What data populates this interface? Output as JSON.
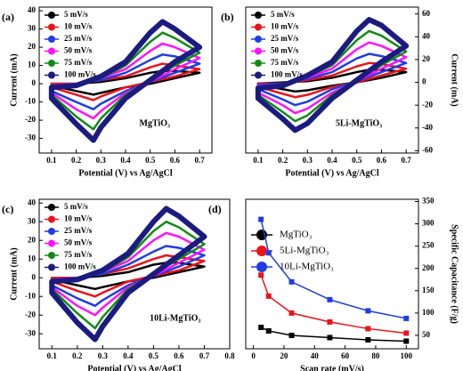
{
  "chart_data": [
    {
      "type": "line",
      "label": "(a)",
      "annotation": "MgTiO₃",
      "xlabel": "Potential (V) vs Ag/AgCl",
      "ylabel": "Current (mA)",
      "y_axis_side": "left",
      "x": [
        0.1,
        0.2,
        0.3,
        0.4,
        0.5,
        0.55,
        0.6,
        0.7,
        0.6,
        0.5,
        0.4,
        0.3,
        0.27,
        0.2,
        0.1
      ],
      "xlim": [
        0.05,
        0.75
      ],
      "xticks": [
        0.1,
        0.2,
        0.3,
        0.4,
        0.5,
        0.6,
        0.7
      ],
      "ylim": [
        -38,
        42
      ],
      "yticks": [
        -30,
        -20,
        -10,
        0,
        10,
        20,
        30,
        40
      ],
      "series": [
        {
          "name": "5 mV/s",
          "color": "#000000",
          "values": [
            0,
            0,
            1,
            3,
            6,
            7,
            7,
            6,
            3,
            0,
            -2,
            -5,
            -6,
            -4,
            -1
          ]
        },
        {
          "name": "10 mV/s",
          "color": "#e8141b",
          "values": [
            0,
            0,
            2,
            4,
            9,
            11,
            10,
            8,
            4,
            1,
            -2,
            -7,
            -9,
            -6,
            -2
          ]
        },
        {
          "name": "25 mV/s",
          "color": "#1f3de0",
          "values": [
            -1,
            0,
            2,
            6,
            13,
            16,
            15,
            11,
            6,
            1,
            -4,
            -11,
            -14,
            -10,
            -4
          ]
        },
        {
          "name": "50 mV/s",
          "color": "#ff10ff",
          "values": [
            -1,
            0,
            3,
            8,
            18,
            22,
            20,
            14,
            8,
            1,
            -5,
            -15,
            -19,
            -14,
            -5
          ]
        },
        {
          "name": "75 mV/s",
          "color": "#128a12",
          "values": [
            -1,
            -1,
            3,
            10,
            23,
            28,
            25,
            17,
            10,
            2,
            -6,
            -19,
            -25,
            -18,
            -6
          ]
        },
        {
          "name": "100 mV/s",
          "color": "#1b1b80",
          "values": [
            -2,
            -1,
            4,
            12,
            28,
            34,
            30,
            20,
            12,
            2,
            -8,
            -24,
            -31,
            -22,
            -8
          ]
        }
      ]
    },
    {
      "type": "line",
      "label": "(b)",
      "annotation": "5Li-MgTiO₃",
      "xlabel": "Potential (V) vs Ag/AgCl",
      "ylabel": "Current (mA)",
      "y_axis_side": "right",
      "x": [
        0.1,
        0.2,
        0.3,
        0.4,
        0.5,
        0.55,
        0.6,
        0.7,
        0.6,
        0.5,
        0.4,
        0.3,
        0.25,
        0.2,
        0.1
      ],
      "xlim": [
        0.05,
        0.75
      ],
      "xticks": [
        0.1,
        0.2,
        0.3,
        0.4,
        0.5,
        0.6,
        0.7
      ],
      "ylim": [
        -62,
        66
      ],
      "yticks": [
        -60,
        -40,
        -20,
        0,
        20,
        40,
        60
      ],
      "series": [
        {
          "name": "5 mV/s",
          "color": "#000000",
          "values": [
            -1,
            0,
            1,
            4,
            9,
            11,
            11,
            9,
            4,
            0,
            -3,
            -7,
            -8,
            -6,
            -2
          ]
        },
        {
          "name": "10 mV/s",
          "color": "#e8141b",
          "values": [
            -1,
            -1,
            2,
            6,
            14,
            17,
            16,
            12,
            6,
            0,
            -4,
            -11,
            -13,
            -10,
            -4
          ]
        },
        {
          "name": "25 mV/s",
          "color": "#1f3de0",
          "values": [
            -2,
            -1,
            3,
            9,
            21,
            25,
            23,
            17,
            9,
            1,
            -6,
            -17,
            -20,
            -15,
            -6
          ]
        },
        {
          "name": "50 mV/s",
          "color": "#ff10ff",
          "values": [
            -3,
            -2,
            4,
            12,
            29,
            35,
            32,
            22,
            12,
            1,
            -9,
            -23,
            -27,
            -20,
            -9
          ]
        },
        {
          "name": "75 mV/s",
          "color": "#128a12",
          "values": [
            -4,
            -2,
            5,
            15,
            37,
            45,
            41,
            27,
            15,
            2,
            -11,
            -29,
            -34,
            -26,
            -11
          ]
        },
        {
          "name": "100 mV/s",
          "color": "#1b1b80",
          "values": [
            -5,
            -3,
            6,
            18,
            45,
            55,
            50,
            32,
            18,
            2,
            -14,
            -36,
            -42,
            -32,
            -14
          ]
        }
      ]
    },
    {
      "type": "line",
      "label": "(c)",
      "annotation": "10Li-MgTiO₃",
      "xlabel": "Potential (V) vs Ag/AgCl",
      "ylabel": "Current (mA)",
      "y_axis_side": "left",
      "x": [
        0.1,
        0.2,
        0.3,
        0.4,
        0.5,
        0.55,
        0.6,
        0.7,
        0.6,
        0.5,
        0.4,
        0.3,
        0.27,
        0.2,
        0.1
      ],
      "xlim": [
        0.05,
        0.8
      ],
      "xticks": [
        0.1,
        0.2,
        0.3,
        0.4,
        0.5,
        0.6,
        0.7,
        0.8
      ],
      "ylim": [
        -38,
        42
      ],
      "yticks": [
        -30,
        -20,
        -10,
        0,
        10,
        20,
        30,
        40
      ],
      "series": [
        {
          "name": "5 mV/s",
          "color": "#000000",
          "values": [
            0,
            0,
            1,
            3,
            7,
            8,
            8,
            6,
            3,
            0,
            -2,
            -5,
            -6,
            -4,
            -1
          ]
        },
        {
          "name": "10 mV/s",
          "color": "#e8141b",
          "values": [
            0,
            0,
            2,
            5,
            10,
            12,
            11,
            9,
            4,
            1,
            -2,
            -8,
            -10,
            -7,
            -2
          ]
        },
        {
          "name": "25 mV/s",
          "color": "#1f3de0",
          "values": [
            -1,
            0,
            2,
            7,
            14,
            17,
            16,
            12,
            6,
            1,
            -4,
            -12,
            -15,
            -11,
            -4
          ]
        },
        {
          "name": "50 mV/s",
          "color": "#ff10ff",
          "values": [
            -1,
            0,
            3,
            9,
            20,
            24,
            22,
            15,
            8,
            1,
            -5,
            -16,
            -20,
            -15,
            -5
          ]
        },
        {
          "name": "75 mV/s",
          "color": "#128a12",
          "values": [
            -1,
            -1,
            3,
            11,
            25,
            30,
            27,
            18,
            10,
            2,
            -6,
            -21,
            -27,
            -19,
            -6
          ]
        },
        {
          "name": "100 mV/s",
          "color": "#1b1b80",
          "values": [
            -2,
            -1,
            4,
            13,
            30,
            37,
            33,
            22,
            12,
            2,
            -8,
            -26,
            -33,
            -24,
            -8
          ]
        }
      ]
    },
    {
      "type": "scatter-line",
      "label": "(d)",
      "xlabel": "Scan rate (mV/s)",
      "ylabel": "Specific Capacitance (F/g)",
      "y_axis_side": "right",
      "x": [
        5,
        10,
        25,
        50,
        75,
        100
      ],
      "xlim": [
        -5,
        108
      ],
      "xticks": [
        0,
        20,
        40,
        60,
        80,
        100
      ],
      "ylim": [
        20,
        355
      ],
      "yticks": [
        50,
        100,
        150,
        200,
        250,
        300,
        350
      ],
      "series": [
        {
          "name": "MgTiO₃",
          "color": "#000000",
          "values": [
            68,
            60,
            50,
            45,
            40,
            37
          ]
        },
        {
          "name": "5Li-MgTiO₃",
          "color": "#e8141b",
          "values": [
            185,
            138,
            100,
            80,
            65,
            55
          ]
        },
        {
          "name": "10Li-MgTiO₃",
          "color": "#1f3de0",
          "values": [
            310,
            235,
            170,
            130,
            105,
            88
          ]
        }
      ]
    }
  ]
}
